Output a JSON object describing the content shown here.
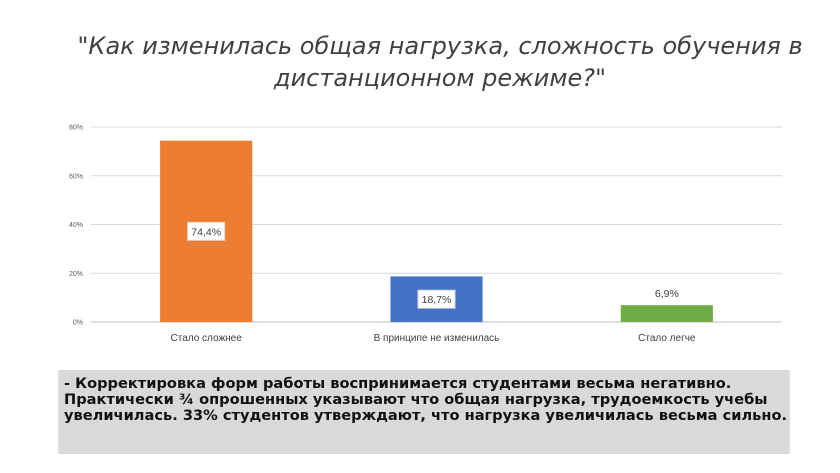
{
  "slide": {
    "title": "\"Как изменилась общая нагрузка, сложность обучения в\nдистанционном режиме?\"",
    "note": "- Корректировка форм работы воспринимается студентами весьма негативно. Практически ¾ опрошенных указывают что общая нагрузка, трудоемкость учебы увеличилась. 33% студентов утверждают, что нагрузка увеличилась весьма сильно."
  },
  "chart_data": {
    "type": "bar",
    "categories": [
      "Стало сложнее",
      "В принципе не изменилась",
      "Стало легче"
    ],
    "values": [
      74.4,
      18.7,
      6.9
    ],
    "data_labels": [
      "74,4%",
      "18,7%",
      "6,9%"
    ],
    "colors": [
      "#ed7d31",
      "#4472c4",
      "#70ad47"
    ],
    "ylim": [
      0,
      80
    ],
    "yticks": [
      "0%",
      "20%",
      "40%",
      "60%",
      "80%"
    ],
    "grid": true,
    "legend": "none"
  }
}
